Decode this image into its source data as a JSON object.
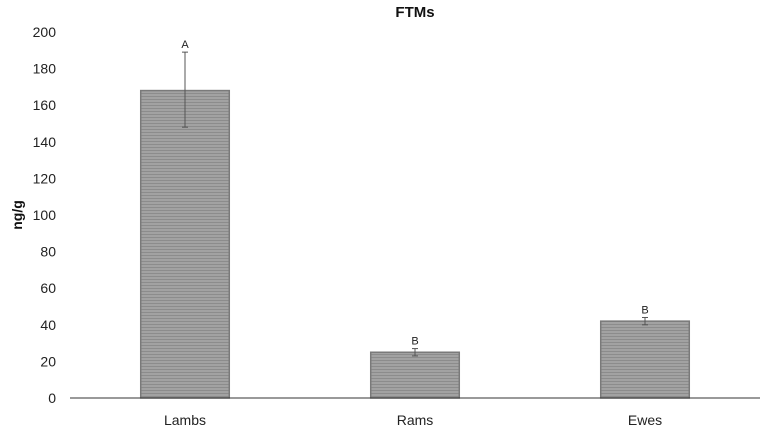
{
  "chart_data": {
    "type": "bar",
    "title": "FTMs",
    "xlabel": "",
    "ylabel": "ng/g",
    "categories": [
      "Lambs",
      "Rams",
      "Ewes"
    ],
    "values": [
      168,
      25,
      42
    ],
    "error_low": [
      148,
      23,
      40
    ],
    "error_high": [
      189,
      27,
      44
    ],
    "significance_labels": [
      "A",
      "B",
      "B"
    ],
    "ylim": [
      0,
      200
    ],
    "yticks": [
      0,
      20,
      40,
      60,
      80,
      100,
      120,
      140,
      160,
      180,
      200
    ],
    "grid": false,
    "legend": "none",
    "colors": {
      "bar_fill": "#9a9a9a",
      "bar_stroke": "#7a7a7a",
      "axis": "#333333"
    }
  }
}
